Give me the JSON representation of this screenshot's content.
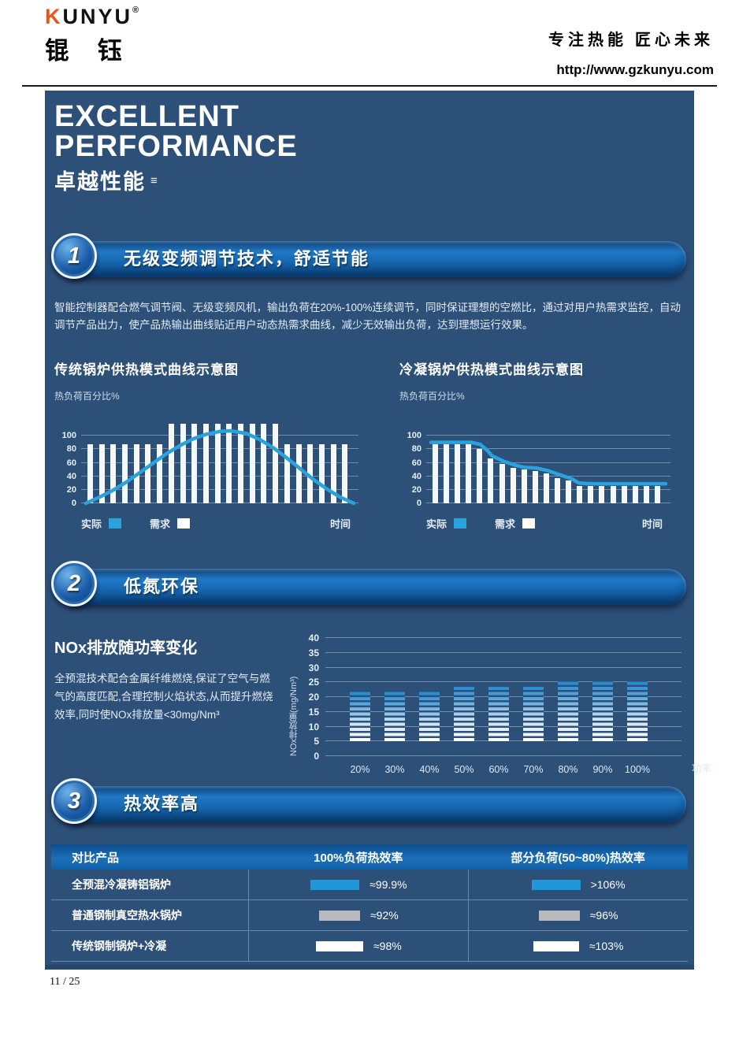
{
  "header": {
    "logo_en": "KUNYU",
    "logo_reg": "®",
    "logo_cn": "锟 钰",
    "tagline": "专注热能  匠心未来",
    "url": "http://www.gzkunyu.com"
  },
  "hero": {
    "line1": "EXCELLENT",
    "line2": "PERFORMANCE",
    "subtitle": "卓越性能",
    "mark": "≡"
  },
  "section1": {
    "number": "1",
    "title": "无级变频调节技术，舒适节能",
    "body": "智能控制器配合燃气调节阀、无级变频风机，输出负荷在20%-100%连续调节，同时保证理想的空燃比，通过对用户热需求监控，自动调节产品出力，使产品热输出曲线贴近用户动态热需求曲线，减少无效输出负荷，达到理想运行效果。"
  },
  "section2": {
    "number": "2",
    "title": "低氮环保",
    "heading": "NOx排放随功率变化",
    "body": "全预混技术配合金属纤维燃烧,保证了空气与燃气的高度匹配,合理控制火焰状态,从而提升燃烧效率,同时使NOx排放量<30mg/Nm³"
  },
  "section3": {
    "number": "3",
    "title": "热效率高"
  },
  "footer": {
    "page": "11 / 25"
  },
  "colors": {
    "panel_bg": "#2d5078",
    "accent_blue": "#2196d8",
    "curve_blue": "#2aa2de",
    "bar_white": "#f5f8fb",
    "bar_gray": "#b9babd",
    "logo_orange": "#e8541c"
  },
  "chart_data": [
    {
      "id": "traditional-boiler",
      "type": "bar+line",
      "title": "传统锅炉供热模式曲线示意图",
      "ylabel": "热负荷百分比%",
      "xlabel": "时间",
      "ylim": [
        0,
        125
      ],
      "yticks": [
        0,
        20,
        40,
        60,
        80,
        100
      ],
      "legend": [
        {
          "label": "实际",
          "color": "#2aa2de"
        },
        {
          "label": "需求",
          "color": "#ffffff"
        }
      ],
      "bars": [
        88,
        88,
        88,
        88,
        88,
        88,
        88,
        118,
        118,
        118,
        118,
        118,
        118,
        118,
        118,
        118,
        118,
        88,
        88,
        88,
        88,
        88,
        88
      ],
      "line": [
        [
          0,
          0
        ],
        [
          0.05,
          9
        ],
        [
          0.1,
          19
        ],
        [
          0.15,
          31
        ],
        [
          0.2,
          45
        ],
        [
          0.25,
          59
        ],
        [
          0.3,
          73
        ],
        [
          0.35,
          85
        ],
        [
          0.4,
          95
        ],
        [
          0.45,
          102
        ],
        [
          0.5,
          106
        ],
        [
          0.54,
          107
        ],
        [
          0.6,
          103
        ],
        [
          0.65,
          94
        ],
        [
          0.7,
          82
        ],
        [
          0.75,
          67
        ],
        [
          0.8,
          51
        ],
        [
          0.85,
          35
        ],
        [
          0.9,
          21
        ],
        [
          0.95,
          9
        ],
        [
          1,
          0
        ]
      ]
    },
    {
      "id": "condensing-boiler",
      "type": "bar+line",
      "title": "冷凝锅炉供热模式曲线示意图",
      "ylabel": "热负荷百分比%",
      "xlabel": "时间",
      "ylim": [
        0,
        125
      ],
      "yticks": [
        0,
        20,
        40,
        60,
        80,
        100
      ],
      "legend": [
        {
          "label": "实际",
          "color": "#2aa2de"
        },
        {
          "label": "需求",
          "color": "#ffffff"
        }
      ],
      "bars": [
        88,
        88,
        88,
        88,
        80,
        66,
        58,
        52,
        50,
        48,
        44,
        38,
        34,
        26,
        26,
        26,
        26,
        26,
        26,
        26,
        26
      ],
      "line": [
        [
          0,
          90
        ],
        [
          0.17,
          90
        ],
        [
          0.21,
          87
        ],
        [
          0.24,
          78
        ],
        [
          0.26,
          70
        ],
        [
          0.31,
          62
        ],
        [
          0.36,
          56
        ],
        [
          0.4,
          53
        ],
        [
          0.45,
          52
        ],
        [
          0.5,
          48
        ],
        [
          0.55,
          42
        ],
        [
          0.6,
          36
        ],
        [
          0.63,
          30
        ],
        [
          0.67,
          29
        ],
        [
          1,
          29
        ]
      ]
    },
    {
      "id": "nox-emission",
      "type": "bar",
      "title": "NOx排放随功率变化",
      "ylabel": "NOx排放量(mg/Nm³)",
      "xlabel": "功率",
      "categories": [
        "20%",
        "30%",
        "40%",
        "50%",
        "60%",
        "70%",
        "80%",
        "90%",
        "100%"
      ],
      "values": [
        22,
        22,
        22,
        24,
        24,
        24,
        25.5,
        25.5,
        25.5
      ],
      "bar_base": 5,
      "ylim": [
        0,
        40
      ],
      "yticks": [
        0,
        5,
        10,
        15,
        20,
        25,
        30,
        35,
        40
      ],
      "note": "NOx排放量<30mg/Nm³"
    },
    {
      "id": "thermal-efficiency",
      "type": "table",
      "headers": [
        "对比产品",
        "100%负荷热效率",
        "部分负荷(50~80%)热效率"
      ],
      "rows": [
        {
          "product": "全预混冷凝铸铝锅炉",
          "full_load": "≈99.9%",
          "part_load": ">106%",
          "bar_color": "#2196d8"
        },
        {
          "product": "普通钢制真空热水锅炉",
          "full_load": "≈92%",
          "part_load": "≈96%",
          "bar_color": "#b9babd"
        },
        {
          "product": "传统钢制锅炉+冷凝",
          "full_load": "≈98%",
          "part_load": "≈103%",
          "bar_color": "#ffffff"
        }
      ]
    }
  ]
}
